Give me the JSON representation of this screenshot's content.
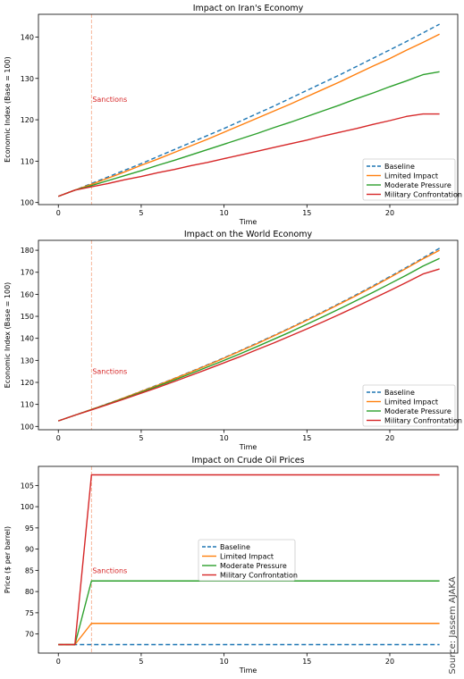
{
  "colors": {
    "baseline": "#1f77b4",
    "limited": "#ff7f0e",
    "moderate": "#2ca02c",
    "military": "#d62728",
    "sanctions_line": "#f4a582"
  },
  "source_text": "Source: Jassem AJAKA",
  "chart_data": [
    {
      "type": "line",
      "title": "Impact on Iran's Economy",
      "xlabel": "Time",
      "ylabel": "Economic Index (Base = 100)",
      "xlim": [
        -1.2,
        24.1
      ],
      "ylim": [
        99.5,
        145.5
      ],
      "xticks": [
        0,
        5,
        10,
        15,
        20
      ],
      "yticks": [
        100,
        110,
        120,
        130,
        140
      ],
      "grid": false,
      "legend_position": "lower-right",
      "annotation": {
        "text": "Sanctions",
        "x": 2,
        "y": 125
      },
      "vline_x": 2,
      "x": [
        0,
        1,
        2,
        3,
        4,
        5,
        6,
        7,
        8,
        9,
        10,
        11,
        12,
        13,
        14,
        15,
        16,
        17,
        18,
        19,
        20,
        21,
        22,
        23
      ],
      "series": [
        {
          "name": "Baseline",
          "key": "baseline",
          "style": "dashed",
          "values": [
            101.5,
            103.0,
            104.6,
            106.2,
            107.8,
            109.4,
            111.1,
            112.8,
            114.5,
            116.2,
            117.9,
            119.7,
            121.5,
            123.3,
            125.2,
            127.1,
            129.0,
            130.9,
            132.9,
            134.9,
            136.9,
            138.9,
            141.0,
            143.1
          ]
        },
        {
          "name": "Limited Impact",
          "key": "limited",
          "style": "solid",
          "values": [
            101.5,
            103.0,
            104.4,
            105.9,
            107.4,
            109.0,
            110.5,
            112.1,
            113.7,
            115.3,
            117.0,
            118.7,
            120.4,
            122.1,
            123.8,
            125.6,
            127.4,
            129.2,
            131.1,
            133.0,
            134.8,
            136.8,
            138.7,
            140.7
          ]
        },
        {
          "name": "Moderate Pressure",
          "key": "moderate",
          "style": "solid",
          "values": [
            101.5,
            103.0,
            104.1,
            105.3,
            106.5,
            107.7,
            109.0,
            110.2,
            111.5,
            112.8,
            114.1,
            115.4,
            116.7,
            118.1,
            119.4,
            120.8,
            122.2,
            123.6,
            125.1,
            126.5,
            128.0,
            129.4,
            130.9,
            131.6
          ]
        },
        {
          "name": "Military Confrontation",
          "key": "military",
          "style": "solid",
          "values": [
            101.5,
            103.0,
            103.8,
            104.6,
            105.5,
            106.3,
            107.2,
            108.0,
            108.9,
            109.7,
            110.6,
            111.5,
            112.4,
            113.3,
            114.2,
            115.1,
            116.1,
            117.0,
            117.9,
            118.9,
            119.8,
            120.8,
            121.4,
            121.4
          ]
        }
      ]
    },
    {
      "type": "line",
      "title": "Impact on the World Economy",
      "xlabel": "Time",
      "ylabel": "Economic Index (Base = 100)",
      "xlim": [
        -1.2,
        24.1
      ],
      "ylim": [
        98.5,
        184.5
      ],
      "xticks": [
        0,
        5,
        10,
        15,
        20
      ],
      "yticks": [
        100,
        110,
        120,
        130,
        140,
        150,
        160,
        170,
        180
      ],
      "grid": false,
      "legend_position": "lower-right",
      "annotation": {
        "text": "Sanctions",
        "x": 2,
        "y": 125
      },
      "vline_x": 2,
      "x": [
        0,
        1,
        2,
        3,
        4,
        5,
        6,
        7,
        8,
        9,
        10,
        11,
        12,
        13,
        14,
        15,
        16,
        17,
        18,
        19,
        20,
        21,
        22,
        23
      ],
      "series": [
        {
          "name": "Baseline",
          "key": "baseline",
          "style": "dashed",
          "values": [
            102.5,
            105.1,
            107.7,
            110.4,
            113.1,
            116.0,
            118.9,
            121.8,
            124.9,
            128.0,
            131.2,
            134.5,
            137.9,
            141.3,
            144.8,
            148.5,
            152.2,
            156.0,
            159.9,
            163.9,
            168.0,
            172.2,
            176.5,
            180.9
          ]
        },
        {
          "name": "Limited Impact",
          "key": "limited",
          "style": "solid",
          "values": [
            102.5,
            105.1,
            107.7,
            110.3,
            113.1,
            115.9,
            118.7,
            121.7,
            124.7,
            127.8,
            131.0,
            134.3,
            137.6,
            141.1,
            144.6,
            148.2,
            151.9,
            155.7,
            159.5,
            163.5,
            167.6,
            171.8,
            176.1,
            180.0
          ]
        },
        {
          "name": "Moderate Pressure",
          "key": "moderate",
          "style": "solid",
          "values": [
            102.5,
            105.1,
            107.6,
            110.2,
            112.8,
            115.5,
            118.3,
            121.1,
            124.0,
            127.0,
            130.0,
            133.1,
            136.3,
            139.6,
            142.9,
            146.4,
            149.9,
            153.5,
            157.2,
            160.9,
            164.8,
            168.7,
            172.8,
            176.3
          ]
        },
        {
          "name": "Military Confrontation",
          "key": "military",
          "style": "solid",
          "values": [
            102.5,
            105.1,
            107.5,
            110.0,
            112.5,
            115.1,
            117.7,
            120.4,
            123.2,
            126.0,
            128.9,
            131.8,
            134.9,
            137.9,
            141.1,
            144.3,
            147.6,
            151.0,
            154.5,
            158.1,
            161.7,
            165.4,
            169.2,
            171.5
          ]
        }
      ]
    },
    {
      "type": "line",
      "title": "Impact on Crude Oil Prices",
      "xlabel": "Time",
      "ylabel": "Price ($ per barrel)",
      "xlim": [
        -1.2,
        24.1
      ],
      "ylim": [
        65.5,
        109.5
      ],
      "xticks": [
        0,
        5,
        10,
        15,
        20
      ],
      "yticks": [
        70,
        75,
        80,
        85,
        90,
        95,
        100,
        105
      ],
      "grid": false,
      "legend_position": "center",
      "annotation": {
        "text": "Sanctions",
        "x": 2,
        "y": 85
      },
      "vline_x": 2,
      "x": [
        0,
        1,
        2,
        23
      ],
      "series": [
        {
          "name": "Baseline",
          "key": "baseline",
          "style": "dashed",
          "values": [
            67.5,
            67.5,
            67.5,
            67.5
          ]
        },
        {
          "name": "Limited Impact",
          "key": "limited",
          "style": "solid",
          "values": [
            67.5,
            67.5,
            72.5,
            72.5
          ]
        },
        {
          "name": "Moderate Pressure",
          "key": "moderate",
          "style": "solid",
          "values": [
            67.5,
            67.5,
            82.5,
            82.5
          ]
        },
        {
          "name": "Military Confrontation",
          "key": "military",
          "style": "solid",
          "values": [
            67.5,
            67.5,
            107.5,
            107.5
          ]
        }
      ]
    }
  ]
}
